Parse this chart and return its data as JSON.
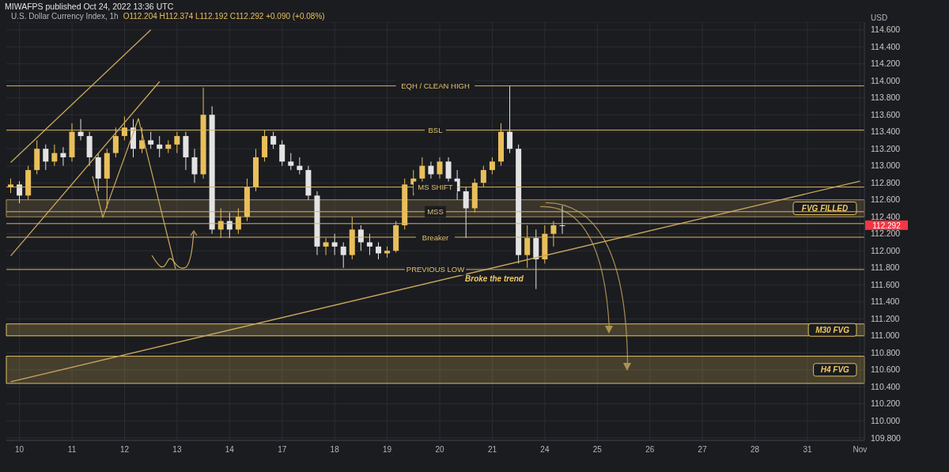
{
  "chart_data": {
    "type": "candlestick",
    "title": "U.S. Dollar Currency Index, 1h",
    "subtitle": "O112.204 H112.374 L112.192 C112.292 +0.090 (+0.08%)",
    "ylabel": "USD",
    "categories": [
      null,
      "10",
      null,
      null,
      null,
      null,
      null,
      "11",
      null,
      null,
      null,
      null,
      null,
      "12",
      null,
      null,
      null,
      null,
      null,
      "13",
      null,
      null,
      null,
      null,
      null,
      "14",
      null,
      null,
      null,
      null,
      null,
      "17",
      null,
      null,
      null,
      null,
      null,
      "18",
      null,
      null,
      null,
      null,
      null,
      "19",
      null,
      null,
      null,
      null,
      null,
      "20",
      null,
      null,
      null,
      null,
      null,
      "21",
      null,
      null,
      null,
      null,
      null,
      "24",
      null,
      null,
      null,
      null,
      null,
      "25",
      null,
      null,
      null,
      null,
      null,
      "26",
      null,
      null,
      null,
      null,
      null,
      "27",
      null,
      null,
      null,
      null,
      null,
      "28",
      null,
      null,
      null,
      null,
      null,
      "31",
      null,
      null,
      null,
      null,
      null,
      "Nov"
    ],
    "ohlc": [
      [
        112.75,
        112.85,
        112.68,
        112.78
      ],
      [
        112.78,
        112.82,
        112.56,
        112.65
      ],
      [
        112.65,
        113.0,
        112.6,
        112.95
      ],
      [
        112.95,
        113.3,
        112.9,
        113.2
      ],
      [
        113.2,
        113.25,
        112.95,
        113.05
      ],
      [
        113.05,
        113.25,
        113.0,
        113.15
      ],
      [
        113.15,
        113.22,
        113.0,
        113.1
      ],
      [
        113.1,
        113.5,
        113.05,
        113.4
      ],
      [
        113.4,
        113.55,
        113.3,
        113.35
      ],
      [
        113.35,
        113.4,
        113.0,
        113.1
      ],
      [
        113.1,
        113.15,
        112.7,
        112.85
      ],
      [
        112.85,
        113.2,
        112.5,
        113.15
      ],
      [
        113.15,
        113.45,
        113.1,
        113.35
      ],
      [
        113.35,
        113.58,
        113.3,
        113.45
      ],
      [
        113.45,
        113.55,
        113.1,
        113.2
      ],
      [
        113.2,
        113.45,
        113.15,
        113.3
      ],
      [
        113.3,
        113.4,
        113.2,
        113.25
      ],
      [
        113.25,
        113.35,
        113.1,
        113.2
      ],
      [
        113.2,
        113.3,
        113.15,
        113.25
      ],
      [
        113.25,
        113.4,
        113.15,
        113.35
      ],
      [
        113.35,
        113.4,
        112.95,
        113.1
      ],
      [
        113.1,
        113.2,
        112.8,
        112.9
      ],
      [
        112.9,
        113.92,
        112.85,
        113.6
      ],
      [
        113.6,
        113.7,
        112.2,
        112.25
      ],
      [
        112.25,
        112.5,
        112.15,
        112.35
      ],
      [
        112.35,
        112.45,
        112.15,
        112.25
      ],
      [
        112.25,
        112.5,
        112.2,
        112.4
      ],
      [
        112.4,
        112.85,
        112.35,
        112.75
      ],
      [
        112.75,
        113.2,
        112.7,
        113.1
      ],
      [
        113.1,
        113.42,
        113.05,
        113.35
      ],
      [
        113.35,
        113.4,
        113.2,
        113.25
      ],
      [
        113.25,
        113.3,
        113.0,
        113.05
      ],
      [
        113.05,
        113.15,
        112.95,
        113.0
      ],
      [
        113.0,
        113.1,
        112.9,
        112.95
      ],
      [
        112.95,
        113.0,
        112.6,
        112.65
      ],
      [
        112.65,
        112.7,
        111.95,
        112.05
      ],
      [
        112.05,
        112.15,
        111.95,
        112.1
      ],
      [
        112.1,
        112.2,
        111.95,
        112.05
      ],
      [
        112.05,
        112.1,
        111.8,
        111.95
      ],
      [
        111.95,
        112.4,
        111.9,
        112.25
      ],
      [
        112.25,
        112.3,
        112.0,
        112.1
      ],
      [
        112.1,
        112.2,
        111.95,
        112.05
      ],
      [
        112.05,
        112.1,
        111.9,
        111.97
      ],
      [
        111.97,
        112.05,
        111.92,
        112.0
      ],
      [
        112.0,
        112.35,
        111.98,
        112.3
      ],
      [
        112.3,
        112.85,
        112.25,
        112.78
      ],
      [
        112.78,
        112.95,
        112.65,
        112.85
      ],
      [
        112.85,
        113.1,
        112.8,
        113.0
      ],
      [
        113.0,
        113.05,
        112.85,
        112.9
      ],
      [
        112.9,
        113.1,
        112.85,
        113.05
      ],
      [
        113.05,
        113.1,
        112.8,
        112.85
      ],
      [
        112.85,
        112.95,
        112.6,
        112.7
      ],
      [
        112.7,
        112.75,
        112.15,
        112.5
      ],
      [
        112.5,
        112.85,
        112.45,
        112.8
      ],
      [
        112.8,
        113.0,
        112.75,
        112.95
      ],
      [
        112.95,
        113.1,
        112.9,
        113.05
      ],
      [
        113.05,
        113.5,
        113.0,
        113.4
      ],
      [
        113.4,
        113.94,
        113.15,
        113.2
      ],
      [
        113.2,
        113.25,
        111.85,
        111.95
      ],
      [
        111.95,
        112.3,
        111.8,
        112.15
      ],
      [
        112.15,
        112.25,
        111.55,
        111.9
      ],
      [
        111.9,
        112.3,
        111.85,
        112.2
      ],
      [
        112.2,
        112.35,
        112.05,
        112.3
      ],
      [
        112.3,
        112.53,
        112.2,
        112.292
      ],
      null,
      null,
      null,
      null,
      null,
      null,
      null,
      null,
      null,
      null,
      null,
      null,
      null,
      null,
      null,
      null,
      null,
      null,
      null,
      null,
      null,
      null,
      null,
      null,
      null,
      null,
      null,
      null,
      null,
      null,
      null,
      null,
      null,
      null
    ],
    "colors": [
      "#e9bf5b",
      "#e3e3e3",
      "#e9bf5b",
      "#e9bf5b",
      "#e3e3e3",
      "#e9bf5b",
      "#e3e3e3",
      "#e9bf5b",
      "#e3e3e3",
      "#e3e3e3",
      "#e3e3e3",
      "#e9bf5b",
      "#e9bf5b",
      "#e9bf5b",
      "#e3e3e3",
      "#e9bf5b",
      "#e3e3e3",
      "#e3e3e3",
      "#e9bf5b",
      "#e9bf5b",
      "#e3e3e3",
      "#e3e3e3",
      "#e9bf5b",
      "#e3e3e3",
      "#e9bf5b",
      "#e3e3e3",
      "#e9bf5b",
      "#e9bf5b",
      "#e9bf5b",
      "#e9bf5b",
      "#e3e3e3",
      "#e3e3e3",
      "#e3e3e3",
      "#e3e3e3",
      "#e3e3e3",
      "#e3e3e3",
      "#e9bf5b",
      "#e3e3e3",
      "#e3e3e3",
      "#e9bf5b",
      "#e3e3e3",
      "#e3e3e3",
      "#e3e3e3",
      "#e9bf5b",
      "#e9bf5b",
      "#e9bf5b",
      "#e9bf5b",
      "#e9bf5b",
      "#e3e3e3",
      "#e9bf5b",
      "#e3e3e3",
      "#e3e3e3",
      "#e3e3e3",
      "#e9bf5b",
      "#e9bf5b",
      "#e9bf5b",
      "#e9bf5b",
      "#e3e3e3",
      "#e3e3e3",
      "#e9bf5b",
      "#e3e3e3",
      "#e9bf5b",
      "#e9bf5b",
      "#e3e3e3",
      null,
      null,
      null,
      null,
      null,
      null,
      null,
      null,
      null,
      null,
      null,
      null,
      null,
      null,
      null,
      null,
      null,
      null,
      null,
      null,
      null,
      null,
      null,
      null,
      null,
      null,
      null,
      null,
      null,
      null,
      null,
      null,
      null,
      null
    ],
    "series": [
      {
        "type": "line",
        "color": "#c8a75c",
        "values": [
          110.46,
          null,
          null,
          null,
          null,
          null,
          null,
          null,
          null,
          null,
          null,
          null,
          null,
          null,
          null,
          null,
          null,
          null,
          null,
          null,
          null,
          null,
          null,
          null,
          null,
          null,
          null,
          null,
          null,
          null,
          null,
          null,
          null,
          null,
          null,
          null,
          null,
          null,
          null,
          null,
          null,
          null,
          null,
          null,
          null,
          null,
          null,
          null,
          null,
          null,
          null,
          null,
          null,
          null,
          null,
          null,
          null,
          null,
          null,
          null,
          null,
          null,
          null,
          null,
          null,
          null,
          null,
          null,
          null,
          null,
          null,
          null,
          null,
          null,
          null,
          null,
          null,
          null,
          null,
          null,
          null,
          null,
          null,
          null,
          null,
          null,
          null,
          null,
          null,
          null,
          null,
          null,
          null,
          null,
          null,
          null,
          null,
          112.82
        ]
      },
      {
        "type": "line",
        "color": "#c8a75c",
        "values": [
          113.04,
          null,
          null,
          null,
          null,
          null,
          null,
          null,
          null,
          null,
          null,
          null,
          null,
          null,
          null,
          null,
          114.6,
          null,
          null,
          null,
          null,
          null,
          null,
          null,
          null,
          null,
          null,
          null,
          null,
          null,
          null,
          null,
          null,
          null,
          null,
          null,
          null,
          null,
          null,
          null,
          null,
          null,
          null,
          null,
          null,
          null,
          null,
          null,
          null,
          null,
          null,
          null,
          null,
          null,
          null,
          null,
          null,
          null,
          null,
          null,
          null,
          null,
          null,
          null,
          null,
          null,
          null,
          null,
          null,
          null,
          null,
          null,
          null,
          null,
          null,
          null,
          null,
          null,
          null,
          null,
          null,
          null,
          null,
          null,
          null,
          null,
          null,
          null,
          null,
          null,
          null,
          null,
          null,
          null,
          null,
          null,
          null,
          null
        ]
      },
      {
        "type": "line",
        "color": "#c8a75c",
        "values": [
          111.94,
          null,
          null,
          null,
          null,
          null,
          null,
          null,
          null,
          null,
          null,
          null,
          null,
          null,
          null,
          null,
          null,
          113.99,
          null,
          null,
          null,
          null,
          null,
          null,
          null,
          null,
          null,
          null,
          null,
          null,
          null,
          null,
          null,
          null,
          null,
          null,
          null,
          null,
          null,
          null,
          null,
          null,
          null,
          null,
          null,
          null,
          null,
          null,
          null,
          null,
          null,
          null,
          null,
          null,
          null,
          null,
          null,
          null,
          null,
          null,
          null,
          null,
          null,
          null,
          null,
          null,
          null,
          null,
          null,
          null,
          null,
          null,
          null,
          null,
          null,
          null,
          null,
          null,
          null,
          null,
          null,
          null,
          null,
          null,
          null,
          null,
          null,
          null,
          null,
          null,
          null,
          null,
          null,
          null,
          null,
          null,
          null,
          null
        ]
      }
    ],
    "ylim": [
      109.77,
      114.69
    ],
    "yticks": [
      {
        "value": 109.8,
        "label": "109.800"
      },
      {
        "value": 110,
        "label": "110.000"
      },
      {
        "value": 110.2,
        "label": "110.200"
      },
      {
        "value": 110.4,
        "label": "110.400"
      },
      {
        "value": 110.6,
        "label": "110.600"
      },
      {
        "value": 110.8,
        "label": "110.800"
      },
      {
        "value": 111,
        "label": "111.000"
      },
      {
        "value": 111.2,
        "label": "111.200"
      },
      {
        "value": 111.4,
        "label": "111.400"
      },
      {
        "value": 111.6,
        "label": "111.600"
      },
      {
        "value": 111.8,
        "label": "111.800"
      },
      {
        "value": 112,
        "label": "112.000"
      },
      {
        "value": 112.2,
        "label": "112.200"
      },
      {
        "value": 112.4,
        "label": "112.400"
      },
      {
        "value": 112.6,
        "label": "112.600"
      },
      {
        "value": 112.8,
        "label": "112.800"
      },
      {
        "value": 113,
        "label": "113.000"
      },
      {
        "value": 113.2,
        "label": "113.200"
      },
      {
        "value": 113.4,
        "label": "113.400"
      },
      {
        "value": 113.6,
        "label": "113.600"
      },
      {
        "value": 113.8,
        "label": "113.800"
      },
      {
        "value": 114,
        "label": "114.000"
      },
      {
        "value": 114.2,
        "label": "114.200"
      },
      {
        "value": 114.4,
        "label": "114.400"
      },
      {
        "value": 114.6,
        "label": "114.600"
      }
    ],
    "grid": true,
    "ref_lines": [
      {
        "axis": "y",
        "value": 113.94,
        "label": "EQH / CLEAN HIGH",
        "color": "#d9b55c"
      },
      {
        "axis": "y",
        "value": 113.42,
        "label": "BSL",
        "color": "#d9b55c"
      },
      {
        "axis": "y",
        "value": 112.75,
        "label": "MS SHIFT",
        "color": "#d9b55c"
      },
      {
        "axis": "y",
        "value": 112.46,
        "label": "MSS",
        "color": "#d9b55c"
      },
      {
        "axis": "y",
        "value": 112.32,
        "label": null,
        "color": "#d9b55c"
      },
      {
        "axis": "y",
        "value": 112.16,
        "label": "Breaker",
        "color": "#d9b55c"
      },
      {
        "axis": "y",
        "value": 111.78,
        "label": "PREVIOUS LOW",
        "color": "#d9b55c"
      }
    ],
    "bands": [
      {
        "axis": "y",
        "from": 112.4,
        "to": 112.6,
        "label": "FVG FILLED",
        "color": "#a68d55"
      },
      {
        "axis": "y",
        "from": 111.0,
        "to": 111.14,
        "label": "M30 FVG",
        "color": "#e0bd5e"
      },
      {
        "axis": "y",
        "from": 110.44,
        "to": 110.76,
        "label": "H4 FVG",
        "color": "#e0bd5e"
      }
    ],
    "annotations": [
      "MIWAFPS published Oct 24, 2022 13:36 UTC",
      "Broke the trend",
      "112.292"
    ]
  }
}
